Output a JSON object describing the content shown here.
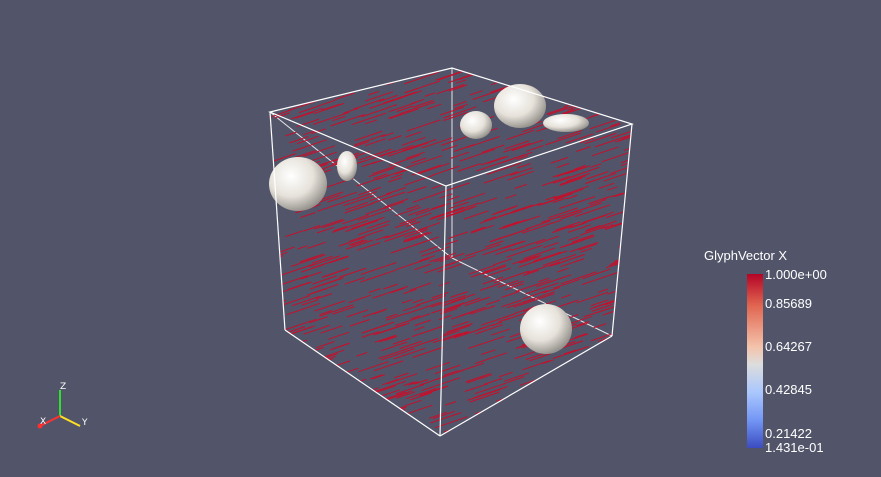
{
  "colorbar": {
    "title": "GlyphVector X",
    "labels": [
      "1.000e+00",
      "0.85689",
      "0.64267",
      "0.42845",
      "0.21422",
      "1.431e-01"
    ],
    "range": [
      0.1431,
      1.0
    ],
    "colors": {
      "high": "#b40426",
      "mid": "#dcdddd",
      "low": "#3b4cc0"
    }
  },
  "axes": {
    "x_label": "X",
    "y_label": "Y",
    "z_label": "Z",
    "x_color": "#ff3030",
    "y_color": "#ffe020",
    "z_color": "#30e030"
  },
  "scene": {
    "background": "#525569",
    "glyph_color": "#c4102c",
    "sphere_color": "#e8e4dc",
    "outline_color": "#ffffff"
  }
}
